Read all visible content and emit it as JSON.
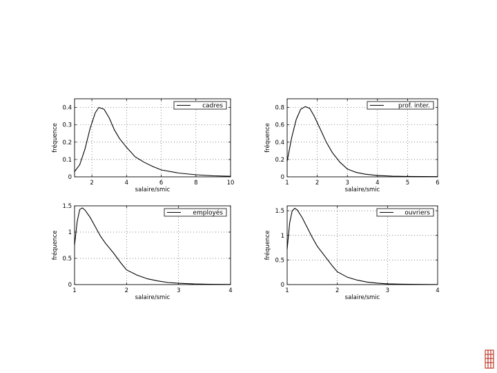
{
  "colors": {
    "background": "#ffffff",
    "axes": "#000000",
    "grid": "#555555",
    "line": "#000000",
    "logo": "#c0392b"
  },
  "chart_data": [
    {
      "type": "line",
      "title": "",
      "xlabel": "salaire/smic",
      "ylabel": "fréquence",
      "xlim": [
        1,
        10
      ],
      "ylim": [
        0,
        0.45
      ],
      "xticks": [
        2,
        4,
        6,
        8,
        10
      ],
      "yticks": [
        0,
        0.1,
        0.2,
        0.3,
        0.4
      ],
      "grid": true,
      "legend_position": "top-right",
      "series": [
        {
          "name": "cadres",
          "x": [
            1.0,
            1.3,
            1.6,
            1.9,
            2.2,
            2.4,
            2.7,
            3.0,
            3.3,
            3.6,
            4.0,
            4.5,
            5.0,
            5.5,
            6.0,
            7.0,
            8.0,
            9.0,
            10.0
          ],
          "y": [
            0.03,
            0.07,
            0.16,
            0.28,
            0.37,
            0.4,
            0.39,
            0.34,
            0.27,
            0.22,
            0.17,
            0.115,
            0.085,
            0.06,
            0.04,
            0.022,
            0.012,
            0.006,
            0.003
          ]
        }
      ]
    },
    {
      "type": "line",
      "title": "",
      "xlabel": "salaire/smic",
      "ylabel": "fréquence",
      "xlim": [
        1,
        6
      ],
      "ylim": [
        0,
        0.9
      ],
      "xticks": [
        1,
        2,
        3,
        4,
        5,
        6
      ],
      "yticks": [
        0,
        0.2,
        0.4,
        0.6,
        0.8
      ],
      "grid": true,
      "legend_position": "top-right",
      "series": [
        {
          "name": "prof. inter.",
          "x": [
            1.0,
            1.15,
            1.3,
            1.45,
            1.6,
            1.75,
            1.9,
            2.1,
            2.3,
            2.5,
            2.75,
            3.0,
            3.3,
            3.6,
            4.0,
            4.5,
            5.0,
            5.5,
            6.0
          ],
          "y": [
            0.18,
            0.45,
            0.66,
            0.78,
            0.81,
            0.79,
            0.7,
            0.55,
            0.4,
            0.28,
            0.17,
            0.09,
            0.05,
            0.03,
            0.015,
            0.008,
            0.005,
            0.003,
            0.002
          ]
        }
      ]
    },
    {
      "type": "line",
      "title": "",
      "xlabel": "salaire/smic",
      "ylabel": "fréquence",
      "xlim": [
        1,
        4
      ],
      "ylim": [
        0,
        1.5
      ],
      "xticks": [
        1,
        2,
        3,
        4
      ],
      "yticks": [
        0,
        0.5,
        1,
        1.5
      ],
      "grid": true,
      "legend_position": "top-right",
      "series": [
        {
          "name": "employés",
          "x": [
            1.0,
            1.05,
            1.1,
            1.15,
            1.2,
            1.3,
            1.4,
            1.5,
            1.6,
            1.75,
            1.9,
            2.0,
            2.2,
            2.4,
            2.6,
            2.8,
            3.0,
            3.3,
            3.6,
            4.0
          ],
          "y": [
            0.75,
            1.2,
            1.43,
            1.46,
            1.42,
            1.28,
            1.1,
            0.92,
            0.78,
            0.6,
            0.4,
            0.28,
            0.18,
            0.11,
            0.07,
            0.04,
            0.025,
            0.012,
            0.006,
            0.002
          ]
        }
      ]
    },
    {
      "type": "line",
      "title": "",
      "xlabel": "salaire/smic",
      "ylabel": "fréquence",
      "xlim": [
        1,
        4
      ],
      "ylim": [
        0,
        1.6
      ],
      "xticks": [
        1,
        2,
        3,
        4
      ],
      "yticks": [
        0,
        0.5,
        1,
        1.5
      ],
      "grid": true,
      "legend_position": "top-right",
      "series": [
        {
          "name": "ouvriers",
          "x": [
            1.0,
            1.05,
            1.1,
            1.15,
            1.2,
            1.3,
            1.4,
            1.5,
            1.6,
            1.75,
            1.9,
            2.0,
            2.2,
            2.4,
            2.6,
            2.8,
            3.0,
            3.3,
            3.6,
            4.0
          ],
          "y": [
            0.72,
            1.25,
            1.5,
            1.55,
            1.52,
            1.36,
            1.16,
            0.96,
            0.78,
            0.58,
            0.38,
            0.26,
            0.15,
            0.09,
            0.05,
            0.03,
            0.015,
            0.008,
            0.004,
            0.002
          ]
        }
      ]
    }
  ]
}
